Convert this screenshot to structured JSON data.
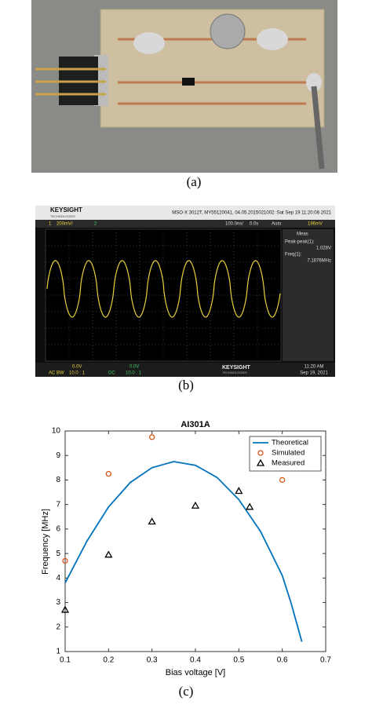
{
  "photo": {
    "caption": "(a)"
  },
  "oscilloscope": {
    "brand": "KEYSIGHT",
    "brand_sub": "TECHNOLOGIES",
    "header": "MSO-X 3012T, MY55120041, 04.05.2015021002: Sat Sep 19 11:20:08 2021",
    "ch1": "1",
    "ch1_scale": "200mV/",
    "ch2": "2",
    "time_scale": "100.0ns/",
    "delay": "0.0s",
    "trigger": "Auto",
    "trigger_level": "196mV",
    "meas_title": "Meas",
    "meas1_label": "Peak-peak(1):",
    "meas1_value": "1.028V",
    "meas2_label": "Freq(1):",
    "meas2_value": "7.1876MHz",
    "ch1_offset": "0.0V",
    "ch1_coupling": "AC  BW",
    "ch1_probe": "10.0 : 1",
    "ch2_offset": "0.0V",
    "ch2_coupling": "DC",
    "ch2_probe": "10.0 : 1",
    "time": "11:20 AM",
    "date": "Sep 19, 2021",
    "caption": "(b)"
  },
  "chart_data": {
    "type": "line",
    "title": "AI301A",
    "x_label": "Bias voltage [V]",
    "y_label": "Frequency [MHz]",
    "xlim": [
      0.1,
      0.7
    ],
    "xticks": [
      0.1,
      0.2,
      0.3,
      0.4,
      0.5,
      0.6,
      0.7
    ],
    "ylim": [
      1,
      10
    ],
    "yticks": [
      1,
      2,
      3,
      4,
      5,
      6,
      7,
      8,
      9,
      10
    ],
    "legend": "top-right",
    "series": [
      {
        "name": "Theoretical",
        "color": "#0072bd",
        "marker": "none",
        "x": [
          0.1,
          0.15,
          0.2,
          0.25,
          0.3,
          0.35,
          0.4,
          0.45,
          0.5,
          0.55,
          0.6,
          0.62,
          0.645
        ],
        "values": [
          3.8,
          5.5,
          6.9,
          7.9,
          8.5,
          8.75,
          8.6,
          8.1,
          7.2,
          5.9,
          4.1,
          3.0,
          1.4
        ]
      },
      {
        "name": "Simulated",
        "color": "#d95319",
        "marker": "circle",
        "x": [
          0.1,
          0.2,
          0.3,
          0.6
        ],
        "values": [
          4.7,
          8.25,
          9.75,
          8.0
        ]
      },
      {
        "name": "Measured",
        "color": "#000000",
        "marker": "triangle",
        "x": [
          0.1,
          0.2,
          0.3,
          0.4,
          0.5,
          0.525
        ],
        "values": [
          2.7,
          4.95,
          6.3,
          6.95,
          7.55,
          6.9
        ]
      }
    ]
  },
  "chart_caption": "(c)"
}
